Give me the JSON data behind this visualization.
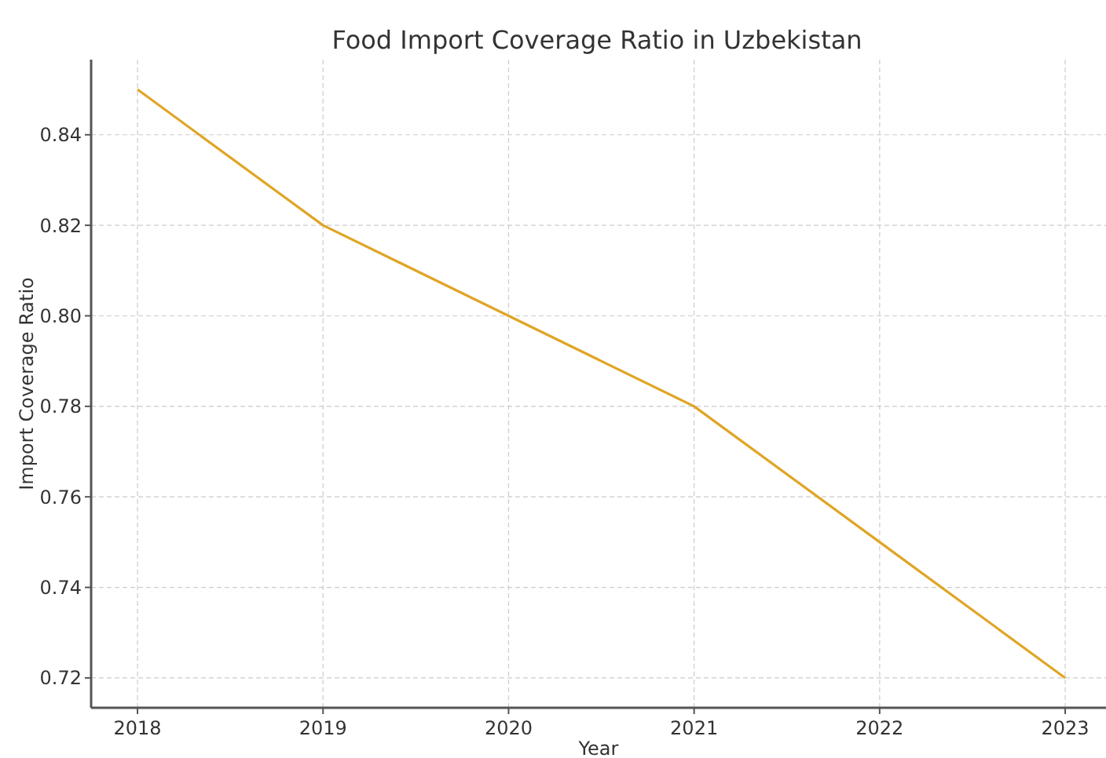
{
  "chart_data": {
    "type": "line",
    "title": "Food Import Coverage Ratio in Uzbekistan",
    "xlabel": "Year",
    "ylabel": "Import Coverage Ratio",
    "x": [
      2018,
      2019,
      2020,
      2021,
      2022,
      2023
    ],
    "series": [
      {
        "color": "#e0a526",
        "values": [
          0.85,
          0.82,
          0.8,
          0.78,
          0.75,
          0.72
        ]
      }
    ],
    "xlim": [
      2017.75,
      2023.22
    ],
    "xticks": [
      2018,
      2019,
      2020,
      2021,
      2022,
      2023
    ],
    "ylim": [
      0.7134,
      0.8566
    ],
    "yticks": [
      {
        "value": 0.72,
        "label": "0.72"
      },
      {
        "value": 0.74,
        "label": "0.74"
      },
      {
        "value": 0.76,
        "label": "0.76"
      },
      {
        "value": 0.78,
        "label": "0.78"
      },
      {
        "value": 0.8,
        "label": "0.80"
      },
      {
        "value": 0.82,
        "label": "0.82"
      },
      {
        "value": 0.84,
        "label": "0.84"
      }
    ],
    "grid": true,
    "line_style": "solid",
    "marker": "none"
  }
}
